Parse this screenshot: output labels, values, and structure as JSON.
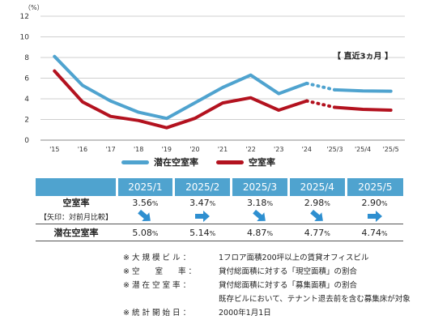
{
  "chart_data": {
    "type": "line",
    "y_unit": "（%）",
    "ylim": [
      0,
      12
    ],
    "yticks": [
      "0",
      "2",
      "4",
      "6",
      "8",
      "10",
      "12"
    ],
    "categories": [
      "'15",
      "'16",
      "'17",
      "'18",
      "'19",
      "'20",
      "'21",
      "'22",
      "'23",
      "'24",
      "'25/3",
      "'25/4",
      "'25/5"
    ],
    "annotation": "【 直近3ヵ月 】",
    "series": [
      {
        "name": "潜在空室率",
        "color": "#4fa3cf",
        "values": [
          8.1,
          5.3,
          3.8,
          2.7,
          2.1,
          3.6,
          5.1,
          6.3,
          4.5,
          5.5,
          4.87,
          4.77,
          4.74
        ]
      },
      {
        "name": "空室率",
        "color": "#b3121f",
        "values": [
          6.7,
          3.7,
          2.3,
          1.9,
          1.2,
          2.1,
          3.6,
          4.1,
          2.9,
          3.8,
          3.18,
          2.98,
          2.9
        ]
      }
    ],
    "grid": "horizontal"
  },
  "table": {
    "headers": [
      "2025/1",
      "2025/2",
      "2025/3",
      "2025/4",
      "2025/5"
    ],
    "vacancy_label": "空室率",
    "vacancy_values": [
      "3.56",
      "3.47",
      "3.18",
      "2.98",
      "2.90"
    ],
    "arrow_label": "【矢印：対前月比較】",
    "arrows": [
      "down-right",
      "right",
      "down-right",
      "down-right",
      "right"
    ],
    "latent_label": "潜在空室率",
    "latent_values": [
      "5.08",
      "5.14",
      "4.87",
      "4.77",
      "4.74"
    ],
    "percent": "%"
  },
  "notes": [
    {
      "key": "※ 大 規 模 ビ ル ：",
      "value": "1フロア面積200坪以上の賃貸オフィスビル"
    },
    {
      "key": "※ 空　　室　　率 ：",
      "value": "貸付総面積に対する「現空面積」の割合"
    },
    {
      "key": "※ 潜 在 空 室 率 ：",
      "value": "貸付総面積に対する「募集面積」の割合"
    },
    {
      "key": "",
      "value": "既存ビルにおいて、テナント退去前を含む募集床が対象"
    },
    {
      "key": "※ 統 計 開 始 日 ：",
      "value": "2000年1月1日"
    }
  ],
  "colors": {
    "accent": "#4fa3cf",
    "red": "#b3121f",
    "arrow": "#2e8fd0"
  }
}
